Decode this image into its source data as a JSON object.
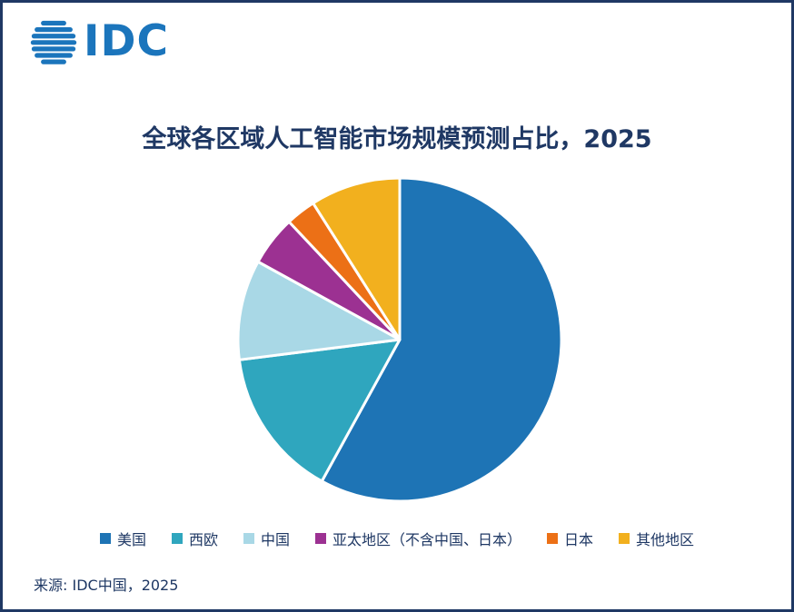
{
  "colors": {
    "navy": "#1F3864",
    "border": "#1F3864",
    "background": "#FFFFFF"
  },
  "logo": {
    "text": "IDC",
    "color": "#1B75BC"
  },
  "chart_data": {
    "type": "pie",
    "title": "全球各区域人工智能市场规模预测占比，2025",
    "start_angle_deg": 0,
    "direction": "clockwise",
    "legend_position": "bottom",
    "grid": false,
    "slices": [
      {
        "label": "美国",
        "value": 58,
        "color": "#1E74B5"
      },
      {
        "label": "西欧",
        "value": 15,
        "color": "#2FA6BE"
      },
      {
        "label": "中国",
        "value": 10,
        "color": "#A9D8E6"
      },
      {
        "label": "亚太地区（不含中国、日本）",
        "value": 5,
        "color": "#9C3192"
      },
      {
        "label": "日本",
        "value": 3,
        "color": "#EC7016"
      },
      {
        "label": "其他地区",
        "value": 9,
        "color": "#F2B01E"
      }
    ]
  },
  "source": {
    "text": "来源: IDC中国，2025"
  }
}
